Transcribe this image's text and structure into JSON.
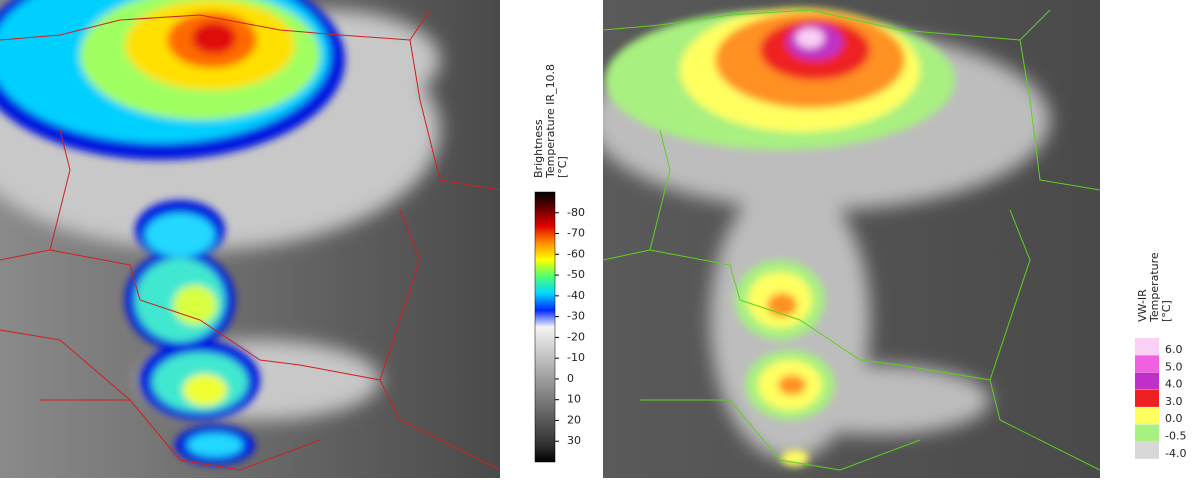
{
  "left_panel": {
    "colorbar": {
      "title": [
        "Brightness",
        "Temperature IR_10.8",
        "[°C]"
      ],
      "lim": [
        -90,
        40
      ],
      "ticks": [
        -80,
        -70,
        -60,
        -50,
        -40,
        -30,
        -20,
        -10,
        0,
        10,
        20,
        30
      ],
      "colors": [
        "#000000",
        "#6a0000",
        "#e00000",
        "#ff8c00",
        "#ffff00",
        "#50ff70",
        "#00d8ff",
        "#0028ff",
        "#f4f4f4",
        "#d8d8d8",
        "#bcbcbc",
        "#a0a0a0",
        "#848484",
        "#686868",
        "#4c4c4c",
        "#303030",
        "#000000"
      ]
    }
  },
  "right_panel": {
    "legend": {
      "title": [
        "VW-IR",
        "Temperature",
        "[°C]"
      ],
      "items": [
        {
          "value": 6,
          "label": "6.0",
          "color": "#fad0f5"
        },
        {
          "value": 5,
          "label": "5.0",
          "color": "#f060e0"
        },
        {
          "value": 4,
          "label": "4.0",
          "color": "#c030c8"
        },
        {
          "value": 3,
          "label": "3.0",
          "color": "#ee2020"
        },
        {
          "value": 0,
          "label": "0.0",
          "color": "#ffff60"
        },
        {
          "value": -0.5,
          "label": "-0.5",
          "color": "#a8f080"
        },
        {
          "value": -4,
          "label": "-4.0",
          "color": "#d8d8d8"
        }
      ]
    }
  }
}
